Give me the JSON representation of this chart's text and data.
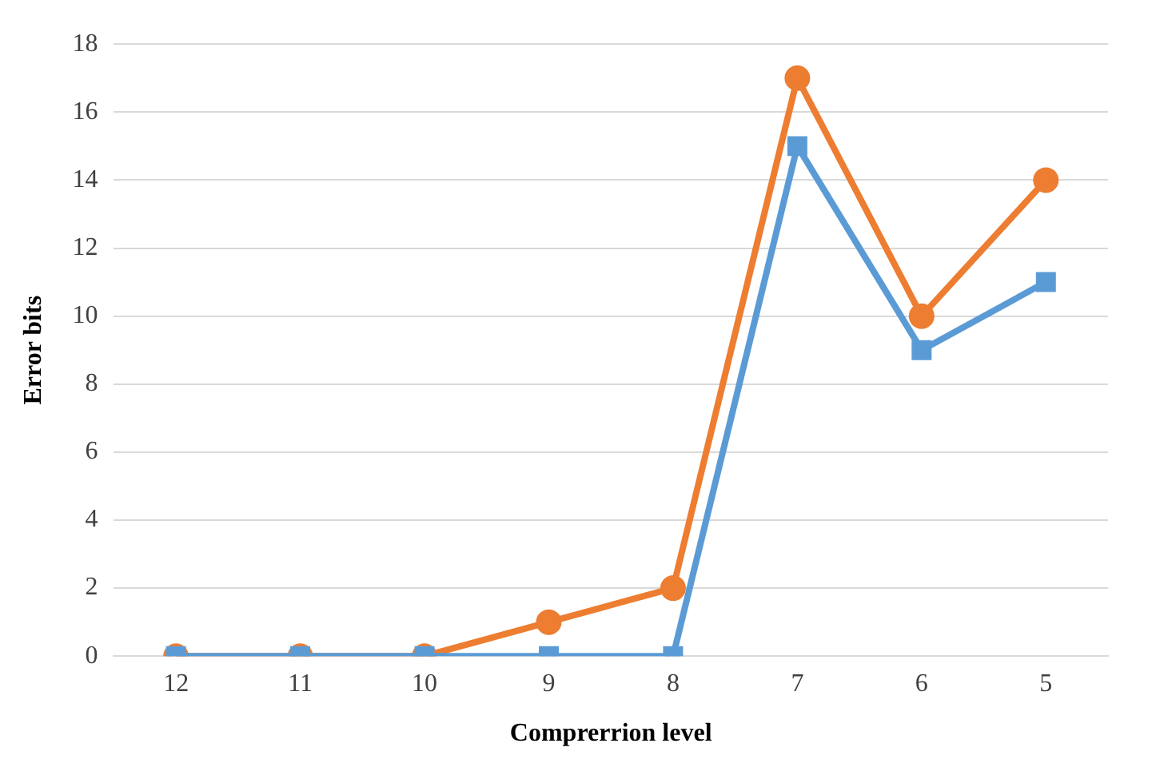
{
  "chart_data": {
    "type": "line",
    "xlabel": "Comprerrion level",
    "ylabel": "Error bits",
    "categories": [
      "12",
      "11",
      "10",
      "9",
      "8",
      "7",
      "6",
      "5"
    ],
    "series": [
      {
        "color": "#5b9bd5",
        "marker": "square",
        "values": [
          0,
          0,
          0,
          0,
          0,
          15,
          9,
          11
        ]
      },
      {
        "color": "#ed7d31",
        "marker": "circle",
        "values": [
          0,
          0,
          0,
          1,
          2,
          17,
          10,
          14
        ]
      }
    ],
    "ylim": [
      0,
      18
    ],
    "yticks": [
      0,
      2,
      4,
      6,
      8,
      10,
      12,
      14,
      16,
      18
    ],
    "grid": "y",
    "legend": false
  }
}
